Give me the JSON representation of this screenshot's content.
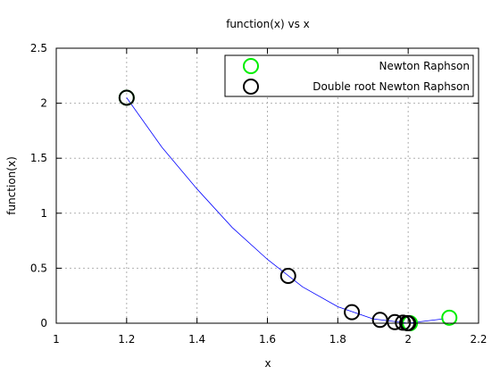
{
  "chart_data": {
    "type": "scatter",
    "title": "function(x) vs x",
    "xlabel": "x",
    "ylabel": "function(x)",
    "xlim": [
      1,
      2.2
    ],
    "ylim": [
      0,
      2.5
    ],
    "x_ticks": [
      1,
      1.2,
      1.4,
      1.6,
      1.8,
      2,
      2.2
    ],
    "y_ticks": [
      0,
      0.5,
      1,
      1.5,
      2,
      2.5
    ],
    "x_tick_labels": [
      "1",
      "1.2",
      "1.4",
      "1.6",
      "1.8",
      "2",
      "2.2"
    ],
    "y_tick_labels": [
      "0",
      "0.5",
      "1",
      "1.5",
      "2",
      "2.5"
    ],
    "grid": true,
    "legend_position": "top-right",
    "curve": {
      "color": "#0000ff",
      "x": [
        1.2,
        1.3,
        1.4,
        1.5,
        1.6,
        1.7,
        1.8,
        1.9,
        2.0,
        2.1
      ],
      "y": [
        2.05,
        1.6,
        1.22,
        0.87,
        0.58,
        0.33,
        0.15,
        0.04,
        0.0,
        0.04
      ]
    },
    "series": [
      {
        "name": "Newton Raphson",
        "color": "#00ee00",
        "x": [
          1.2,
          2.117,
          2.005,
          2.0
        ],
        "y": [
          2.05,
          0.05,
          0.0,
          0.0
        ]
      },
      {
        "name": "Double root Newton Raphson",
        "color": "#000000",
        "x": [
          1.2,
          1.659,
          1.84,
          1.92,
          1.962,
          1.985,
          1.997,
          2.0
        ],
        "y": [
          2.05,
          0.43,
          0.1,
          0.03,
          0.01,
          0.005,
          0.001,
          0.0
        ]
      }
    ]
  }
}
